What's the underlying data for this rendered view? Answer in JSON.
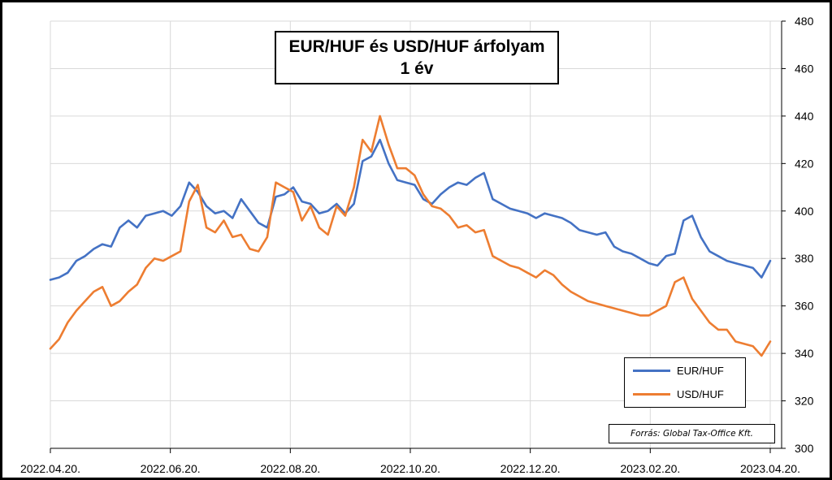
{
  "chart_data": {
    "type": "line",
    "title": "EUR/HUF és USD/HUF árfolyam",
    "subtitle": "1 év",
    "x_tick_labels": [
      "2022.04.20.",
      "2022.06.20.",
      "2022.08.20.",
      "2022.10.20.",
      "2022.12.20.",
      "2023.02.20.",
      "2023.04.20."
    ],
    "y_tick_labels": [
      "300",
      "320",
      "340",
      "360",
      "380",
      "400",
      "420",
      "440",
      "460",
      "480"
    ],
    "ylim": [
      300,
      480
    ],
    "y_axis_side": "right",
    "grid": true,
    "legend_position": "bottom-right",
    "source": "Forrás: Global Tax-Office Kft.",
    "series": [
      {
        "name": "EUR/HUF",
        "color": "#4472C4",
        "values": [
          371,
          372,
          374,
          379,
          381,
          384,
          386,
          385,
          393,
          396,
          393,
          398,
          399,
          400,
          398,
          402,
          412,
          408,
          402,
          399,
          400,
          397,
          405,
          400,
          395,
          393,
          406,
          407,
          410,
          404,
          403,
          399,
          400,
          403,
          399,
          403,
          421,
          423,
          430,
          420,
          413,
          412,
          411,
          405,
          403,
          407,
          410,
          412,
          411,
          414,
          416,
          405,
          403,
          401,
          400,
          399,
          397,
          399,
          398,
          397,
          395,
          392,
          391,
          390,
          391,
          385,
          383,
          382,
          380,
          378,
          377,
          381,
          382,
          396,
          398,
          389,
          383,
          381,
          379,
          378,
          377,
          376,
          372,
          379
        ]
      },
      {
        "name": "USD/HUF",
        "color": "#ED7D31",
        "values": [
          342,
          346,
          353,
          358,
          362,
          366,
          368,
          360,
          362,
          366,
          369,
          376,
          380,
          379,
          381,
          383,
          404,
          411,
          393,
          391,
          396,
          389,
          390,
          384,
          383,
          389,
          412,
          410,
          408,
          396,
          402,
          393,
          390,
          402,
          398,
          410,
          430,
          425,
          440,
          428,
          418,
          418,
          415,
          407,
          402,
          401,
          398,
          393,
          394,
          391,
          392,
          381,
          379,
          377,
          376,
          374,
          372,
          375,
          373,
          369,
          366,
          364,
          362,
          361,
          360,
          359,
          358,
          357,
          356,
          356,
          358,
          360,
          370,
          372,
          363,
          358,
          353,
          350,
          350,
          345,
          344,
          343,
          339,
          345
        ]
      }
    ]
  }
}
